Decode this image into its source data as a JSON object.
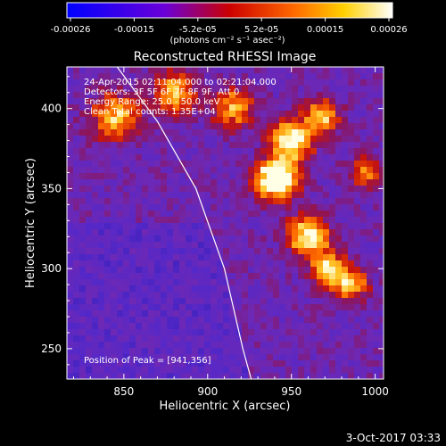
{
  "chart_data": {
    "type": "heatmap",
    "title": "Reconstructed RHESSI Image",
    "xlabel": "Heliocentric X (arcsec)",
    "ylabel": "Heliocentric Y (arcsec)",
    "xlim": [
      816,
      1005
    ],
    "ylim": [
      231,
      426
    ],
    "x_ticks": [
      "850",
      "900",
      "950",
      "1000"
    ],
    "y_ticks": [
      "250",
      "300",
      "350",
      "400"
    ],
    "colorbar": {
      "ticks": [
        "-0.00026",
        "-0.00015",
        "-5.2e-05",
        "5.2e-05",
        "0.00015",
        "0.00026"
      ],
      "unit_label": "(photons cm⁻² s⁻¹ asec⁻²)",
      "range": [
        -0.00026,
        0.00026
      ],
      "colors": [
        "#0000ff",
        "#8a00c8",
        "#cc0000",
        "#ff6a00",
        "#ffd000",
        "#ffffff"
      ]
    },
    "annotations": [
      "24-Apr-2015 02:11:04.000 to 02:21:04.000",
      "Detectors: 3F 5F 6F 7F 8F 9F, Att 0",
      "Energy Range: 25.0 - 50.0 keV",
      "Clean     Total counts: 1.35E+04"
    ],
    "peak_label": "Position of Peak = [941,356]",
    "peak": [
      941,
      356
    ],
    "limb_points": [
      [
        846,
        426
      ],
      [
        870,
        392
      ],
      [
        893,
        350
      ],
      [
        910,
        300
      ],
      [
        921,
        250
      ],
      [
        926,
        231
      ]
    ],
    "bright_sources": [
      {
        "x": 941,
        "y": 356,
        "level": 1.0,
        "radius": 12
      },
      {
        "x": 950,
        "y": 380,
        "level": 0.75,
        "radius": 12
      },
      {
        "x": 960,
        "y": 320,
        "level": 0.7,
        "radius": 12
      },
      {
        "x": 972,
        "y": 300,
        "level": 0.6,
        "radius": 10
      },
      {
        "x": 985,
        "y": 290,
        "level": 0.55,
        "radius": 10
      },
      {
        "x": 845,
        "y": 395,
        "level": 0.55,
        "radius": 14
      },
      {
        "x": 880,
        "y": 410,
        "level": 0.55,
        "radius": 12
      },
      {
        "x": 915,
        "y": 400,
        "level": 0.5,
        "radius": 12
      },
      {
        "x": 968,
        "y": 395,
        "level": 0.55,
        "radius": 10
      },
      {
        "x": 995,
        "y": 360,
        "level": 0.4,
        "radius": 10
      }
    ]
  },
  "footer_date": "3-Oct-2017 03:33"
}
